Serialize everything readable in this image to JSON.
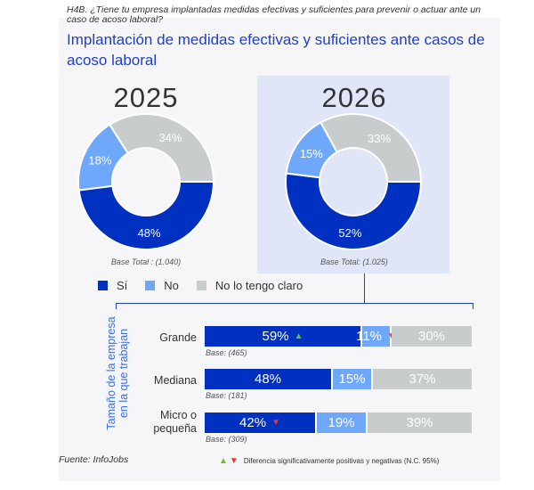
{
  "header": {
    "question": "H4B. ¿Tiene tu empresa implantadas medidas efectivas y suficientes para prevenir o actuar ante un caso de acoso laboral?",
    "title": "Implantación de medidas efectivas y suficientes ante casos de acoso laboral"
  },
  "colors": {
    "si": "#0030bf",
    "no": "#6fa8fa",
    "no_claro": "#c8cccd",
    "accent": "#1f3fc9",
    "highlight_bg": "#e0e5f8",
    "up_arrow": "#6cbf2a",
    "down_arrow": "#e63a2e"
  },
  "chart_data": [
    {
      "type": "pie",
      "title": "2025",
      "donut": true,
      "labels": [
        "Sí",
        "No",
        "No lo tengo claro"
      ],
      "values": [
        48,
        18,
        34
      ],
      "value_labels": [
        "48%",
        "18%",
        "34%"
      ],
      "base": "Base Total : (1.040)"
    },
    {
      "type": "pie",
      "title": "2026",
      "donut": true,
      "highlighted": true,
      "labels": [
        "Sí",
        "No",
        "No lo tengo claro"
      ],
      "values": [
        52,
        15,
        33
      ],
      "value_labels": [
        "52%",
        "15%",
        "33%"
      ],
      "base": "Base Total: (1.025)"
    },
    {
      "type": "bar",
      "stacked": true,
      "orientation": "horizontal",
      "ylabel": "Tamaño de la empresa en la que trabajan",
      "categories": [
        "Grande",
        "Mediana",
        "Micro o pequeña"
      ],
      "series": [
        {
          "name": "Sí",
          "values": [
            59,
            48,
            42
          ],
          "labels": [
            "59%",
            "48%",
            "42%"
          ],
          "significance": [
            "up",
            null,
            "down"
          ]
        },
        {
          "name": "No",
          "values": [
            11,
            15,
            19
          ],
          "labels": [
            "11%",
            "15%",
            "19%"
          ],
          "significance": [
            "down",
            null,
            null
          ]
        },
        {
          "name": "No lo tengo claro",
          "values": [
            30,
            37,
            39
          ],
          "labels": [
            "30%",
            "37%",
            "39%"
          ],
          "significance": [
            null,
            null,
            null
          ]
        }
      ],
      "bases": [
        "Base: (465)",
        "Base: (181)",
        "Base: (309)"
      ],
      "xlim": [
        0,
        100
      ]
    }
  ],
  "legend": {
    "items": [
      "Sí",
      "No",
      "No lo tengo claro"
    ]
  },
  "footer": {
    "source": "Fuente: InfoJobs",
    "significance_note": "Diferencia significativamente positivas y negativas (N.C. 95%)",
    "up_symbol": "▲",
    "down_symbol": "▼"
  }
}
